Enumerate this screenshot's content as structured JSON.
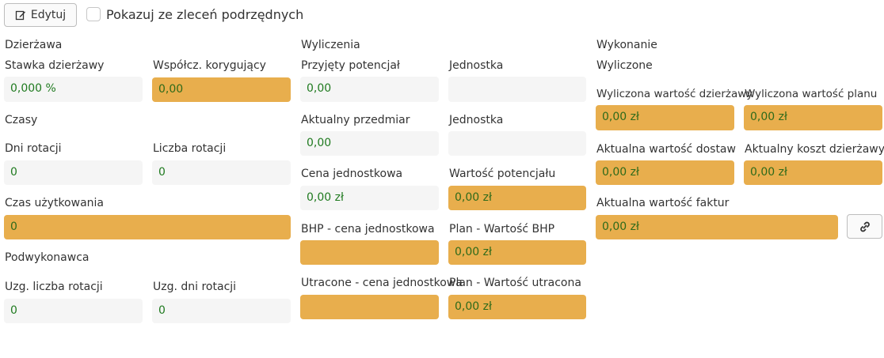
{
  "toolbar": {
    "edit_label": "Edytuj",
    "edit_icon": "edit-icon",
    "subtasks_checkbox_label": "Pokazuj ze zleceń podrzędnych",
    "subtasks_checked": false
  },
  "left": {
    "dzierzawa_title": "Dzierżawa",
    "stawka_label": "Stawka dzierżawy",
    "stawka_value": "0,000 %",
    "wspolcz_label": "Współcz. korygujący",
    "wspolcz_value": "0,00",
    "czasy_title": "Czasy",
    "dni_rotacji_label": "Dni rotacji",
    "dni_rotacji_value": "0",
    "liczba_rotacji_label": "Liczba rotacji",
    "liczba_rotacji_value": "0",
    "czas_uzytkowania_label": "Czas użytkowania",
    "czas_uzytkowania_value": "0",
    "podwykonawca_title": "Podwykonawca",
    "uzg_liczba_label": "Uzg. liczba rotacji",
    "uzg_liczba_value": "0",
    "uzg_dni_label": "Uzg. dni rotacji",
    "uzg_dni_value": "0"
  },
  "middle": {
    "wyliczenia_title": "Wyliczenia",
    "przyjety_label": "Przyjęty potencjał",
    "przyjety_value": "0,00",
    "jednostka1_label": "Jednostka",
    "jednostka1_value": "",
    "aktualny_przedmiar_label": "Aktualny przedmiar",
    "aktualny_przedmiar_value": "0,00",
    "jednostka2_label": "Jednostka",
    "jednostka2_value": "",
    "cena_jedn_label": "Cena jednostkowa",
    "cena_jedn_value": "0,00 zł",
    "wartosc_potencjalu_label": "Wartość potencjału",
    "wartosc_potencjalu_value": "0,00 zł",
    "bhp_cena_label": "BHP - cena jednostkowa",
    "bhp_cena_value": "",
    "plan_bhp_label": "Plan - Wartość BHP",
    "plan_bhp_value": "0,00 zł",
    "utracone_cena_label": "Utracone - cena jednostkowa",
    "utracone_cena_value": "",
    "plan_utracona_label": "Plan - Wartość utracona",
    "plan_utracona_value": "0,00 zł"
  },
  "right": {
    "wykonanie_title": "Wykonanie",
    "wyliczone_title": "Wyliczone",
    "wyliczona_dzierzawy_label": "Wyliczona wartość dzierżawy",
    "wyliczona_dzierzawy_value": "0,00 zł",
    "wyliczona_planu_label": "Wyliczona wartość planu",
    "wyliczona_planu_value": "0,00 zł",
    "aktualna_dostaw_label": "Aktualna wartość dostaw",
    "aktualna_dostaw_value": "0,00 zł",
    "aktualny_koszt_label": "Aktualny koszt dzierżawy",
    "aktualny_koszt_value": "0,00 zł",
    "aktualna_faktur_label": "Aktualna wartość faktur",
    "aktualna_faktur_value": "0,00 zł",
    "link_icon": "link-icon"
  },
  "colors": {
    "highlight": "#e8ae4d",
    "field_bg": "#f5f5f5",
    "value_text": "#1f7a1f"
  }
}
